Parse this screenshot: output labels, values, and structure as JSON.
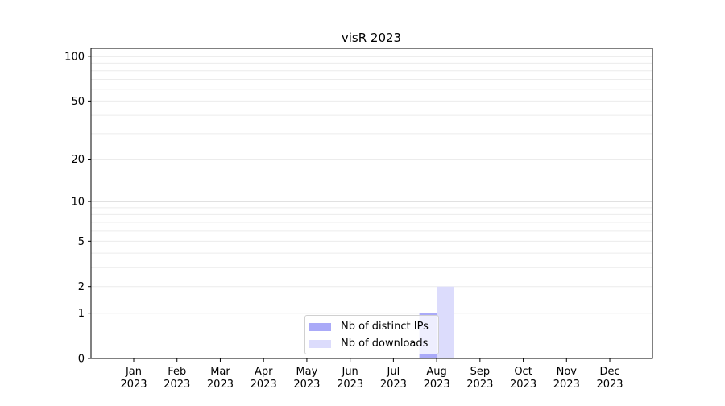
{
  "chart_data": {
    "type": "bar",
    "title": "visR 2023",
    "xlabel": "",
    "ylabel": "",
    "categories": [
      "Jan\n2023",
      "Feb\n2023",
      "Mar\n2023",
      "Apr\n2023",
      "May\n2023",
      "Jun\n2023",
      "Jul\n2023",
      "Aug\n2023",
      "Sep\n2023",
      "Oct\n2023",
      "Nov\n2023",
      "Dec\n2023"
    ],
    "series": [
      {
        "name": "Nb of distinct IPs",
        "color": "#aaaaf8",
        "values": [
          0,
          0,
          0,
          0,
          0,
          0,
          0,
          1,
          0,
          0,
          0,
          0
        ]
      },
      {
        "name": "Nb of downloads",
        "color": "#dcdcfc",
        "values": [
          0,
          0,
          0,
          0,
          0,
          0,
          0,
          2,
          0,
          0,
          0,
          0
        ]
      }
    ],
    "yscale": "log(1+y)",
    "yticks": [
      0,
      1,
      2,
      5,
      10,
      20,
      50,
      100
    ],
    "ylim": [
      0,
      113
    ],
    "grid": true,
    "legend_position": "lower-center"
  }
}
